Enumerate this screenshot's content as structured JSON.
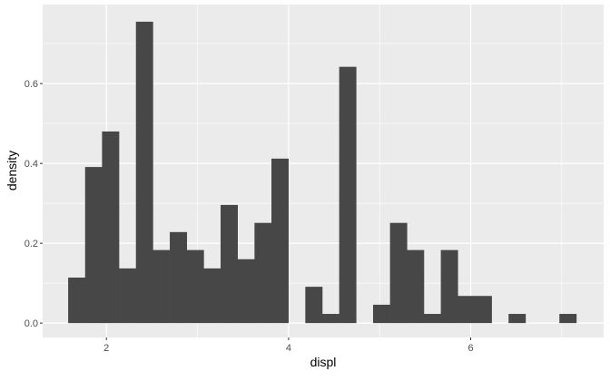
{
  "chart_data": {
    "type": "histogram",
    "xlabel": "displ",
    "ylabel": "density",
    "xlim": [
      1.3,
      7.46
    ],
    "ylim": [
      -0.036,
      0.798
    ],
    "x_ticks": [
      2,
      4,
      6
    ],
    "x_tick_labels": [
      "2",
      "4",
      "6"
    ],
    "y_ticks": [
      0.0,
      0.2,
      0.4,
      0.6
    ],
    "y_tick_labels": [
      "0.0",
      "0.2",
      "0.4",
      "0.6"
    ],
    "grid": true,
    "bin_start": 1.58,
    "bin_width": 0.186,
    "values": [
      0.114,
      0.391,
      0.48,
      0.137,
      0.755,
      0.183,
      0.228,
      0.183,
      0.137,
      0.296,
      0.16,
      0.251,
      0.412,
      0,
      0.091,
      0.023,
      0.642,
      0,
      0.046,
      0.251,
      0.183,
      0.023,
      0.183,
      0.068,
      0.068,
      0,
      0.023,
      0,
      0,
      0.023
    ],
    "bar_color": "#474747",
    "panel_color": "#ebebeb"
  }
}
